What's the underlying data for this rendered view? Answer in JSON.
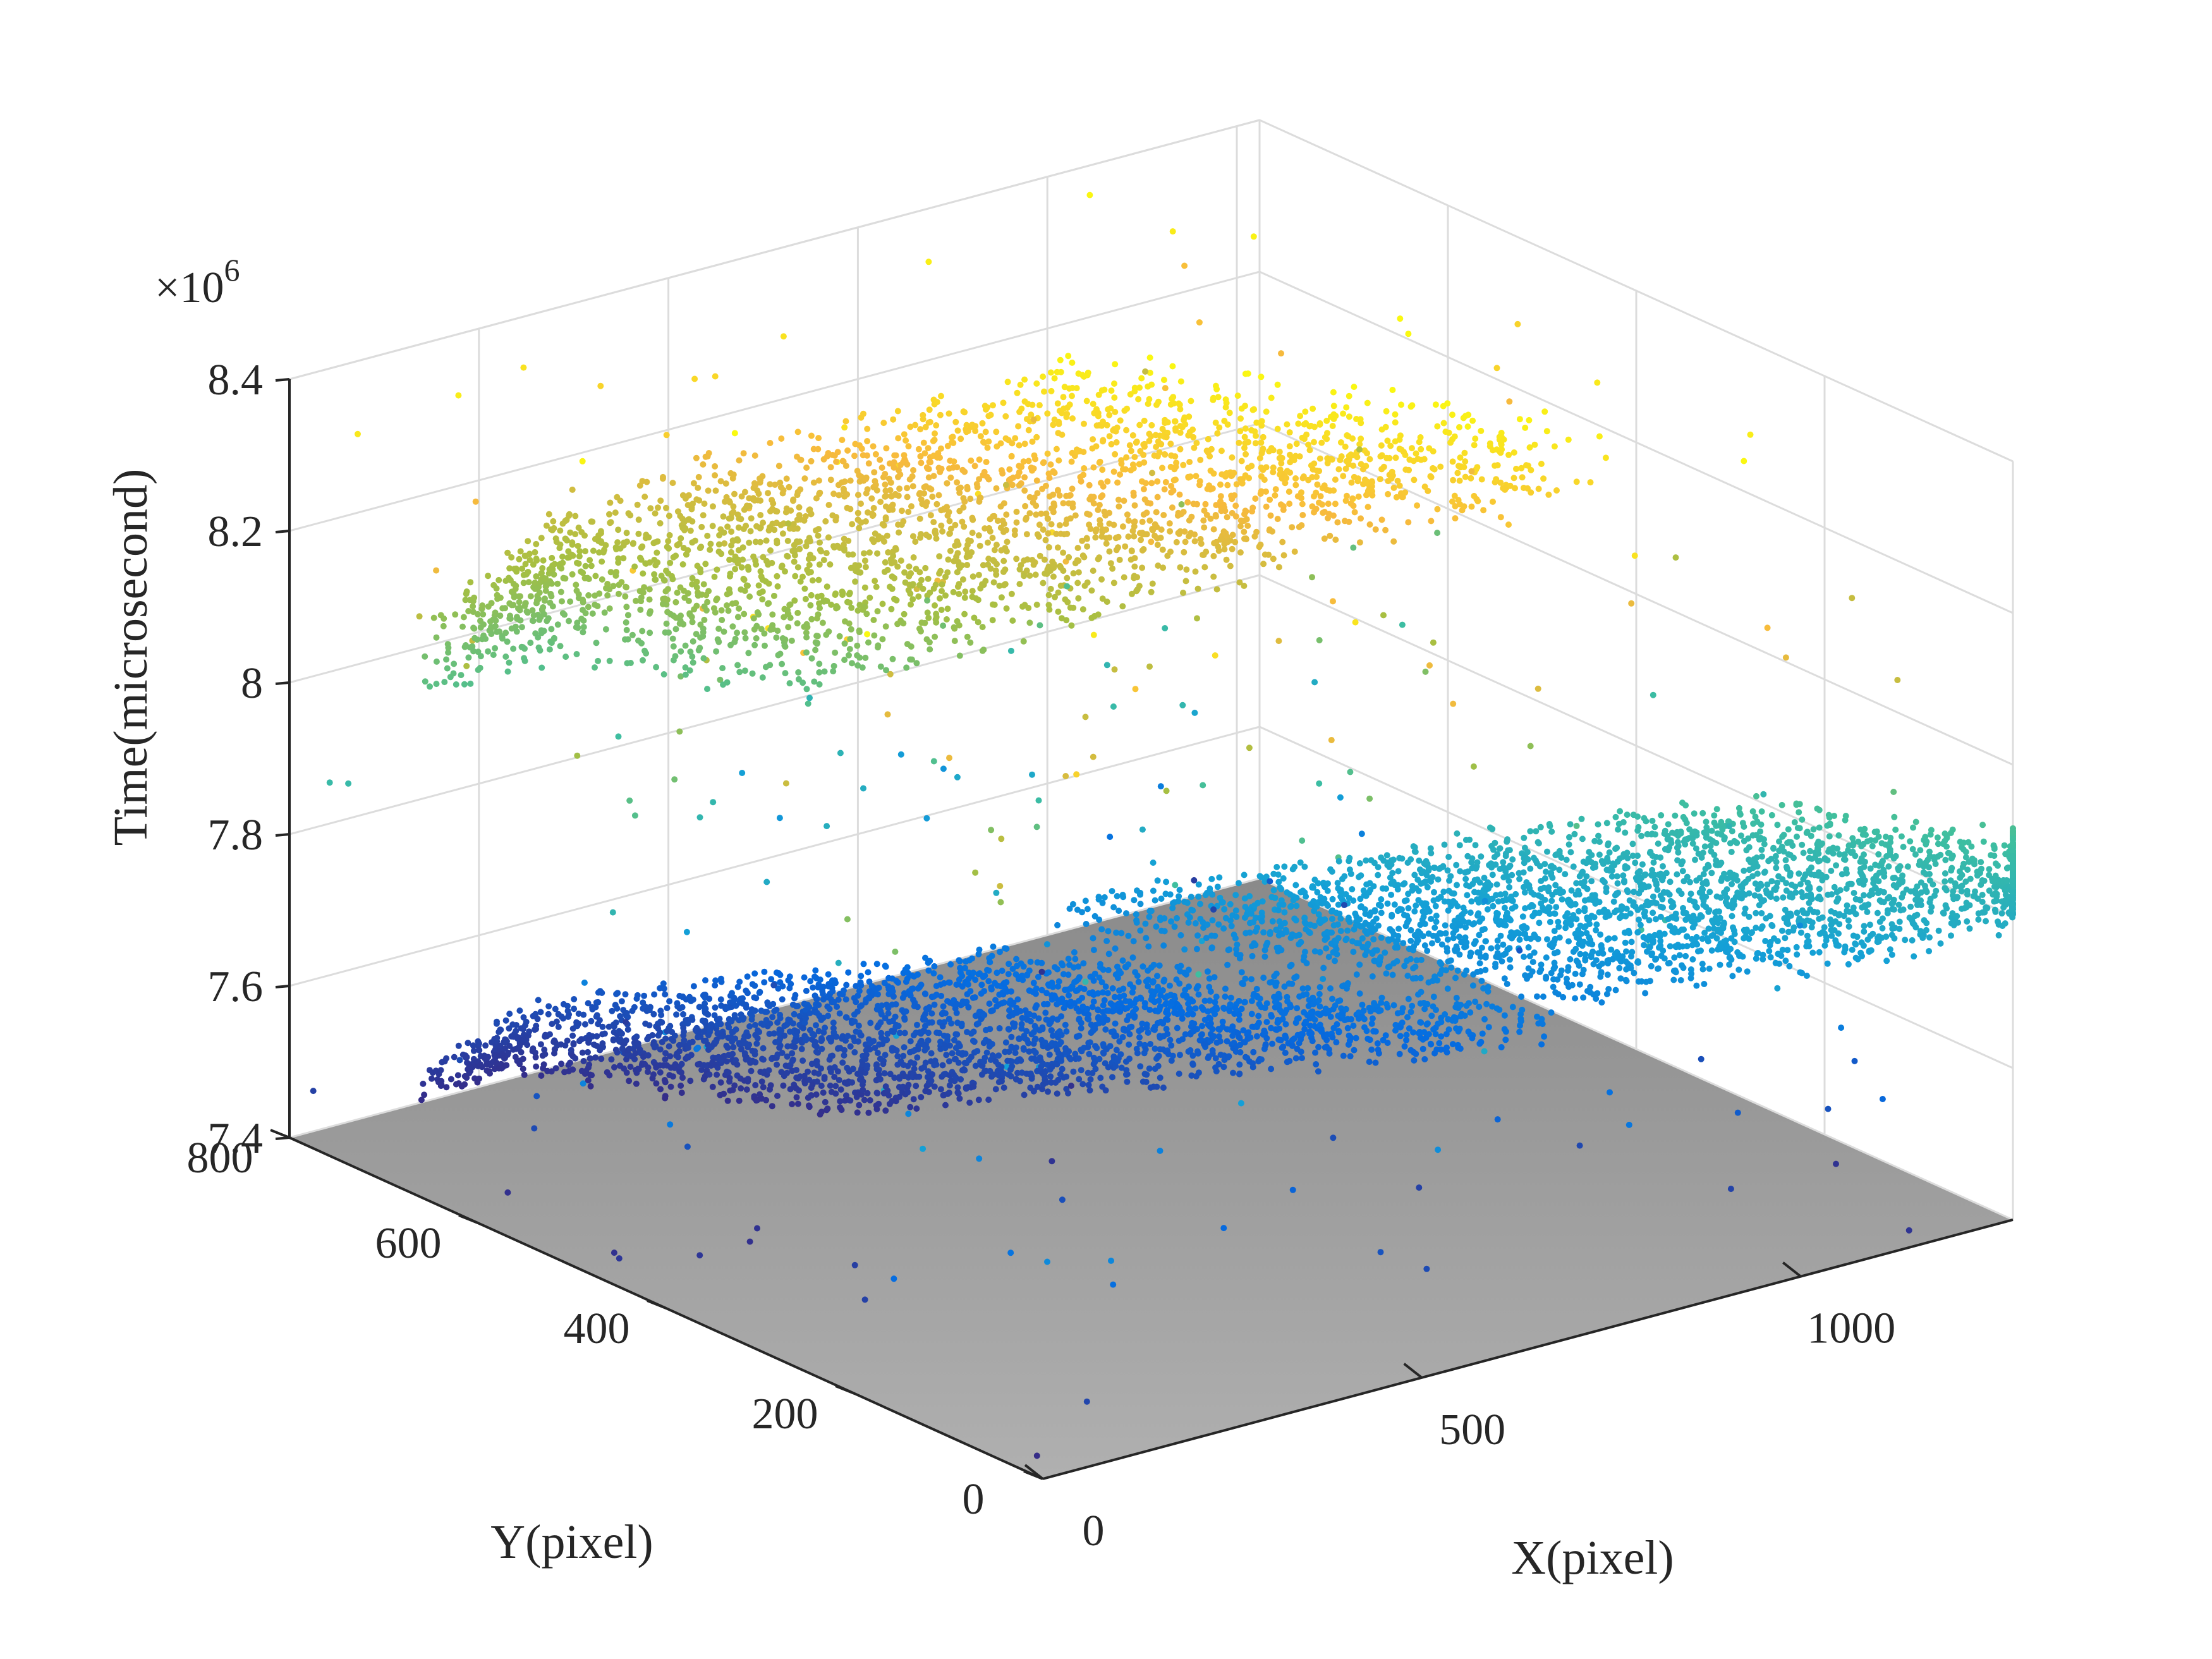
{
  "chart_data": {
    "type": "scatter3d",
    "title": "",
    "xlabel": "X(pixel)",
    "ylabel": "Y(pixel)",
    "zlabel": "Time(microsecond)",
    "z_multiplier": "×10",
    "z_multiplier_exponent": "6",
    "xlim": [
      0,
      1280
    ],
    "ylim": [
      0,
      800
    ],
    "zlim": [
      7.4,
      8.4
    ],
    "x_ticks": [
      0,
      500,
      1000
    ],
    "x_tick_labels": [
      "0",
      "500",
      "1000"
    ],
    "y_ticks": [
      0,
      200,
      400,
      600,
      800
    ],
    "y_tick_labels": [
      "0",
      "200",
      "400",
      "600",
      "800"
    ],
    "z_ticks": [
      7.4,
      7.6,
      7.8,
      8.0,
      8.2,
      8.4
    ],
    "z_tick_labels": [
      "7.4",
      "7.6",
      "7.8",
      "8",
      "8.2",
      "8.4"
    ],
    "grid": true,
    "colormap": "parula",
    "floor_color": "#9a9a9a",
    "series": [
      {
        "description_shape": "S-shaped event surface",
        "segments": [
          {
            "x": [
              330,
              830
            ],
            "y": [
              380,
              760
            ],
            "z": [
              7.4,
              7.63
            ]
          },
          {
            "x": [
              830,
              1280
            ],
            "y": [
              0,
              380
            ],
            "z": [
              7.63,
              7.92
            ]
          },
          {
            "x": [
              330,
              880
            ],
            "y": [
              380,
              800
            ],
            "z": [
              7.93,
              8.4
            ]
          }
        ]
      }
    ]
  }
}
